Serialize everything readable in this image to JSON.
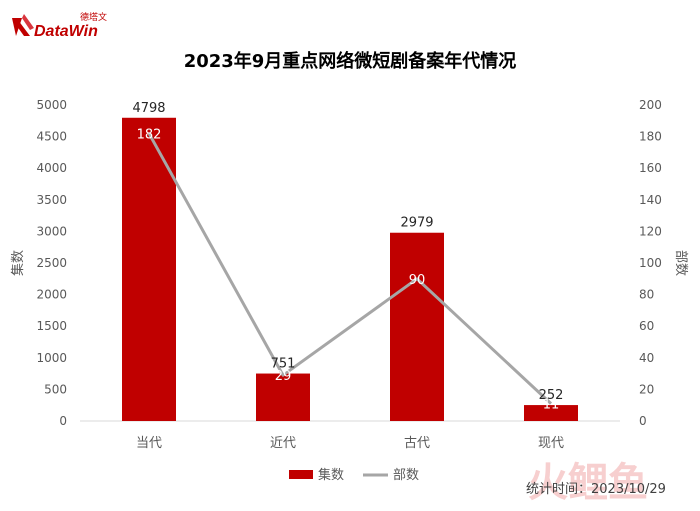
{
  "logo": {
    "name": "DataWin",
    "chinese": "德塔文"
  },
  "footer": {
    "note": "统计时间：2023/10/29",
    "watermark": "火鲤鱼"
  },
  "colors": {
    "bar": "#c00000",
    "line": "#a6a6a6",
    "axis_text": "#595959"
  },
  "chart_data": {
    "type": "bar",
    "title": "2023年9月重点网络微短剧备案年代情况",
    "categories": [
      "当代",
      "近代",
      "古代",
      "现代"
    ],
    "series": [
      {
        "name": "集数",
        "type": "bar",
        "axis": "left",
        "values": [
          4798,
          751,
          2979,
          252
        ]
      },
      {
        "name": "部数",
        "type": "line",
        "axis": "right",
        "values": [
          182,
          29,
          90,
          11
        ]
      }
    ],
    "ylabel": "集数",
    "ylabel_right": "部数",
    "ylim": [
      0,
      5000
    ],
    "ylim_right": [
      0,
      200
    ],
    "yticks": [
      0,
      500,
      1000,
      1500,
      2000,
      2500,
      3000,
      3500,
      4000,
      4500,
      5000
    ],
    "yticks_right": [
      0,
      20,
      40,
      60,
      80,
      100,
      120,
      140,
      160,
      180,
      200
    ],
    "grid": false,
    "legend": "bottom"
  }
}
